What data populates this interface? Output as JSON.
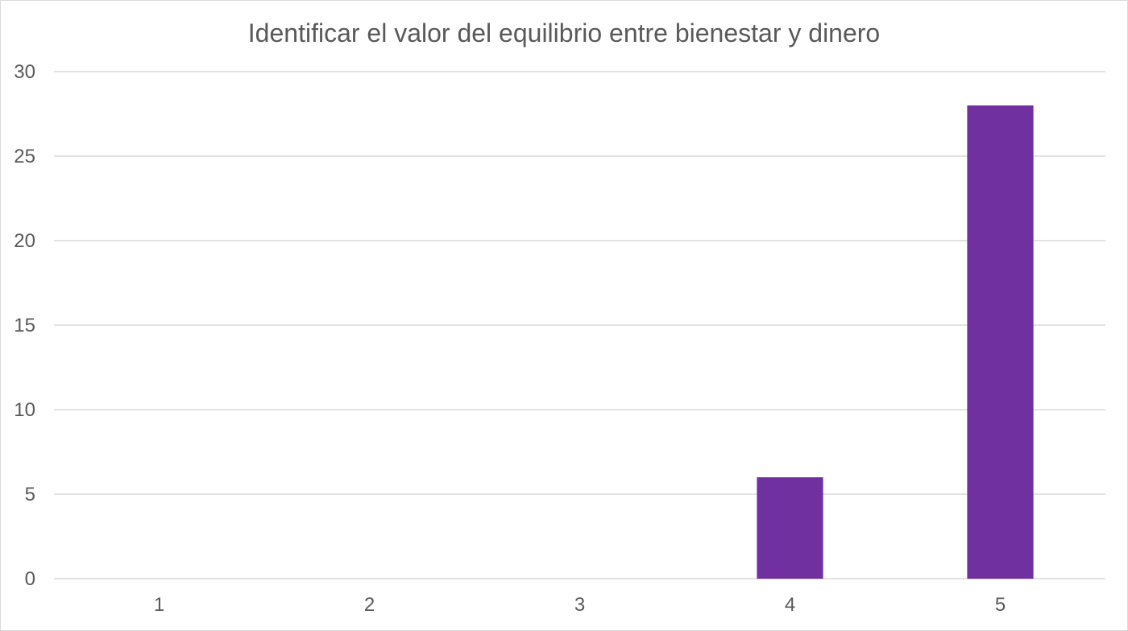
{
  "chart_data": {
    "type": "bar",
    "title": "Identificar el valor del equilibrio entre bienestar y dinero",
    "xlabel": "",
    "ylabel": "",
    "categories": [
      "1",
      "2",
      "3",
      "4",
      "5"
    ],
    "values": [
      0,
      0,
      0,
      6,
      28
    ],
    "ylim": [
      0,
      30
    ],
    "yticks": [
      0,
      5,
      10,
      15,
      20,
      25,
      30
    ],
    "grid": true,
    "legend": "none",
    "bar_color": "#7030a0",
    "grid_color": "#d9d9d9",
    "text_color": "#595959"
  }
}
